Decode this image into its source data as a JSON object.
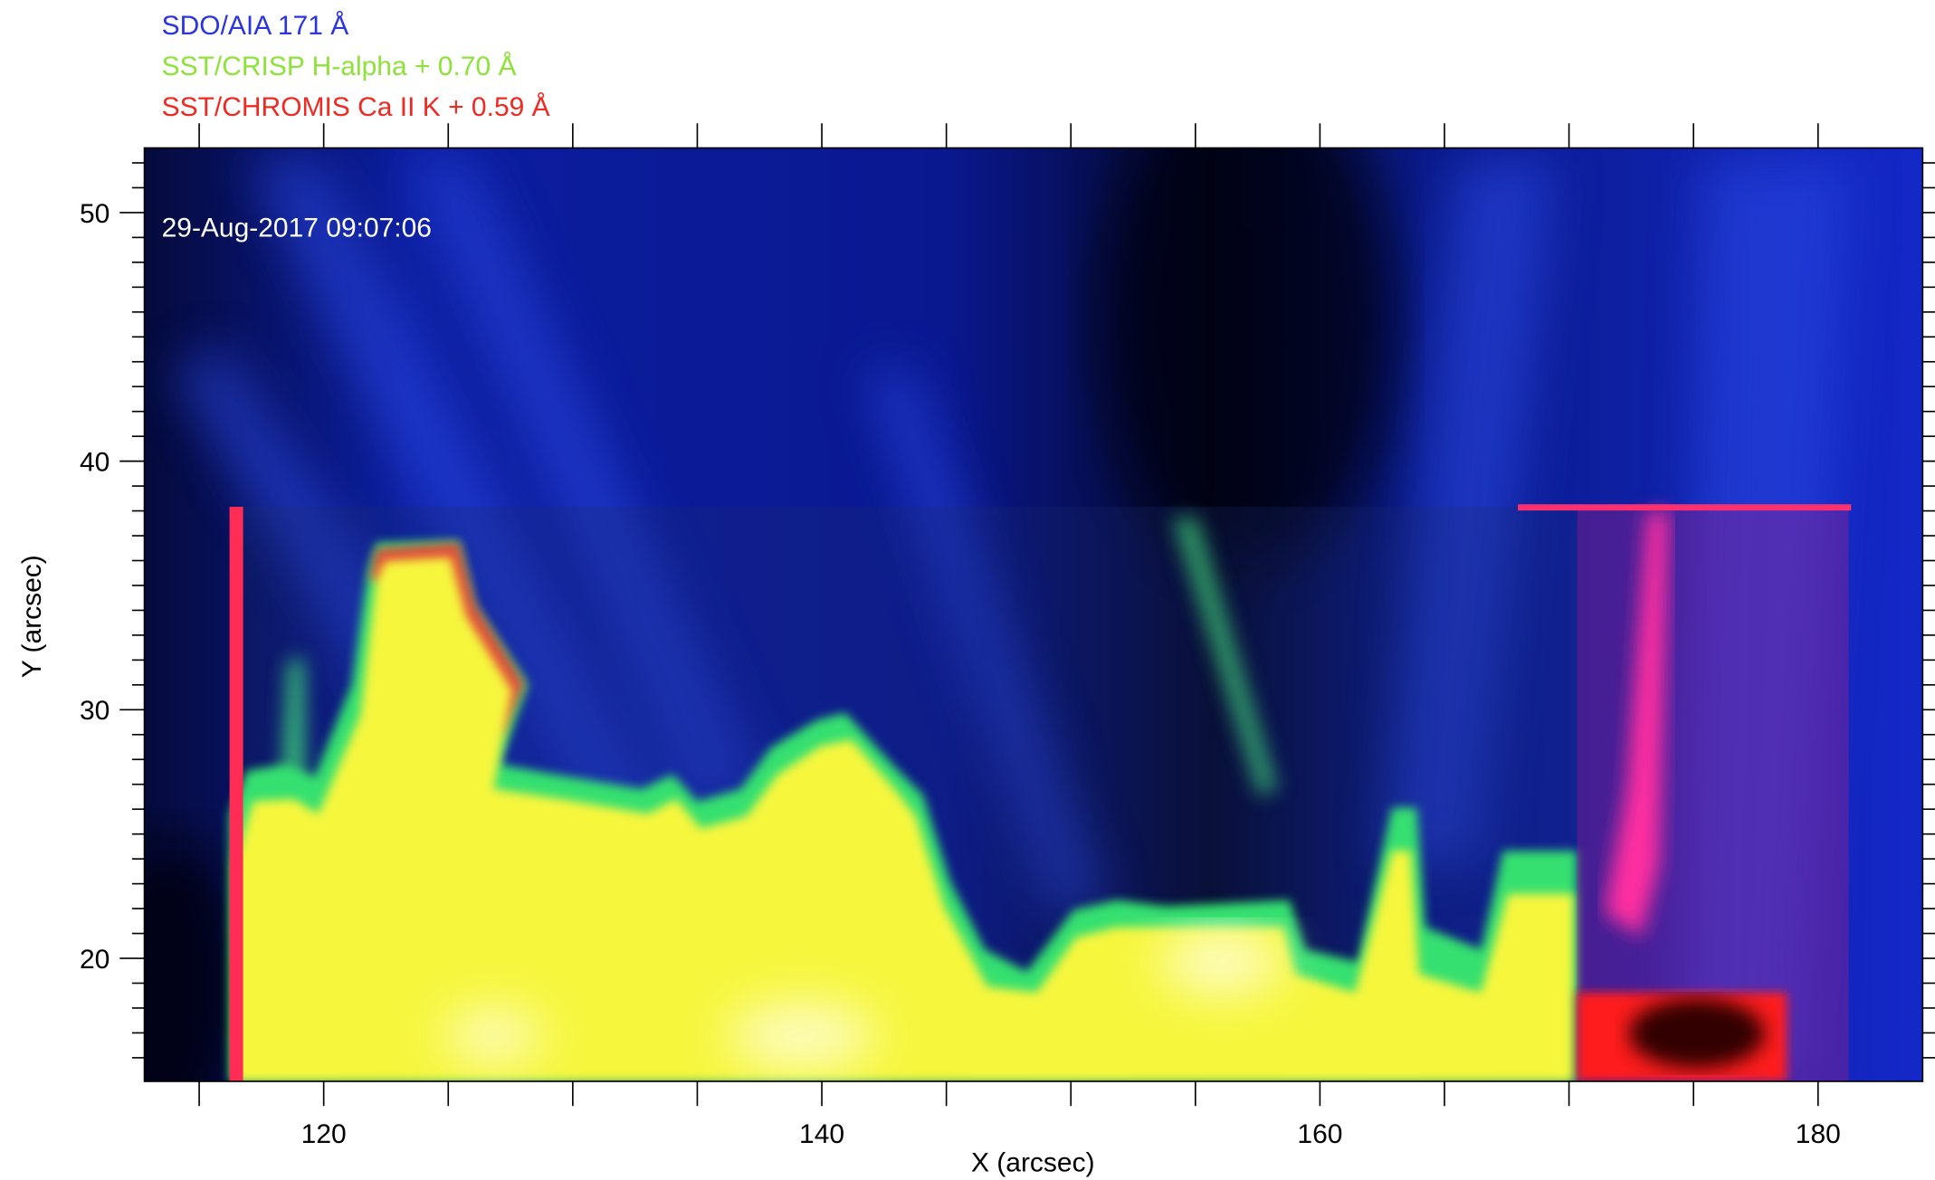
{
  "chart_data": {
    "type": "image",
    "legend": [
      {
        "name": "SDO/AIA 171 Å",
        "color": "#2a35e0"
      },
      {
        "name": "SST/CRISP H-alpha + 0.70 Å",
        "color": "#8ee23a"
      },
      {
        "name": "SST/CHROMIS Ca II K + 0.59 Å",
        "color": "#ee2a22"
      }
    ],
    "annotation": "29-Aug-2017 09:07:06",
    "xlabel": "X (arcsec)",
    "ylabel": "Y (arcsec)",
    "xlim": [
      112.8,
      184.2
    ],
    "ylim": [
      15.05,
      52.6
    ],
    "xticks": [
      120,
      140,
      160,
      180
    ],
    "yticks": [
      20,
      30,
      40,
      50
    ],
    "xminor_ticks": [
      115,
      125,
      130,
      135,
      145,
      150,
      155,
      165,
      170,
      175
    ],
    "yminor_ticks": [
      16,
      17,
      18,
      19,
      21,
      22,
      23,
      24,
      25,
      26,
      27,
      28,
      29,
      31,
      32,
      33,
      34,
      35,
      36,
      37,
      38,
      39,
      41,
      42,
      43,
      44,
      45,
      46,
      47,
      48,
      49,
      51,
      52
    ]
  }
}
